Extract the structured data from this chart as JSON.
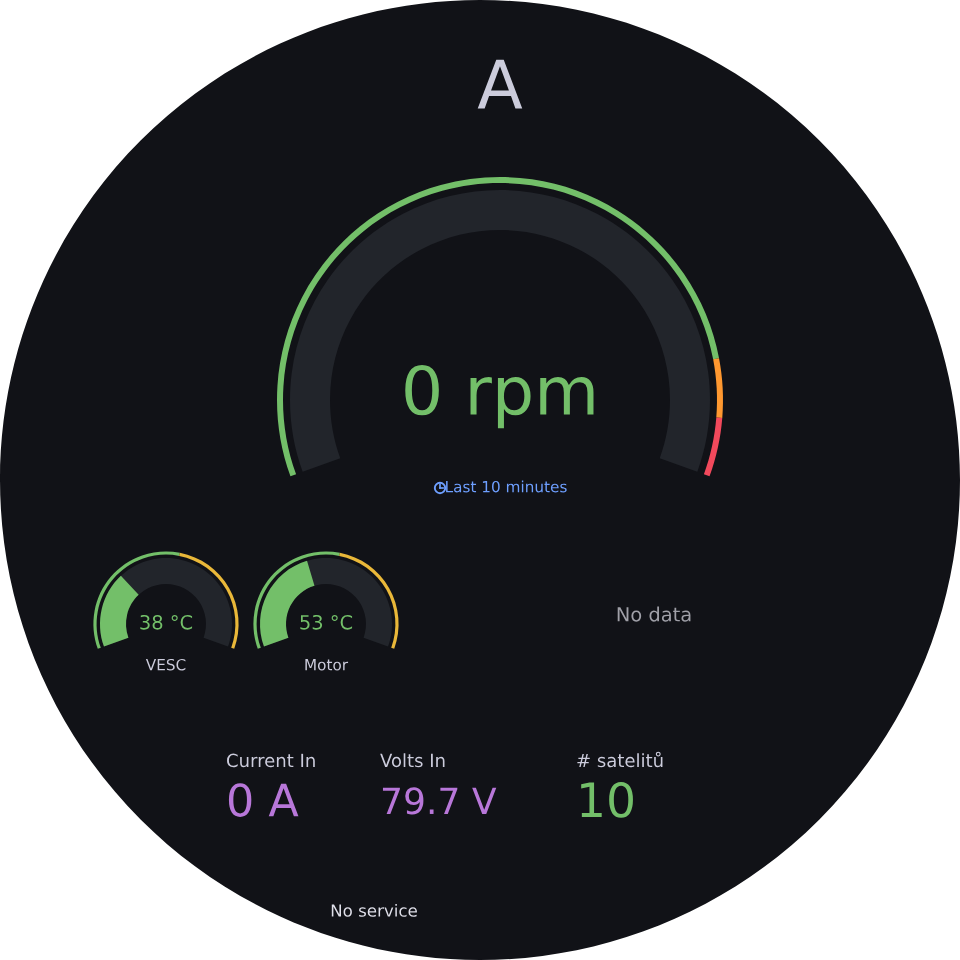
{
  "chart_data": [
    {
      "type": "other",
      "title": "A",
      "values": [
        0
      ],
      "value_labels": [
        "0 rpm"
      ],
      "annotations": [
        "Last 10 minutes"
      ],
      "color": "#73bf69"
    },
    {
      "type": "other",
      "title": "VESC",
      "values": [
        38
      ],
      "value_labels": [
        "38 °C"
      ],
      "color": "#73bf69"
    },
    {
      "type": "other",
      "title": "Motor",
      "values": [
        53
      ],
      "value_labels": [
        "53 °C"
      ],
      "color": "#73bf69"
    },
    {
      "type": "other",
      "annotations": [
        "No data"
      ]
    },
    {
      "type": "other",
      "categories": [
        "Current In",
        "Volts In",
        "# satelitů"
      ],
      "values": [
        0,
        79.7,
        10
      ],
      "value_labels": [
        "0 A",
        "79.7 V",
        "10"
      ],
      "colors": [
        "#b877d9",
        "#b877d9",
        "#73bf69"
      ],
      "annotations": [
        "No service"
      ]
    }
  ]
}
